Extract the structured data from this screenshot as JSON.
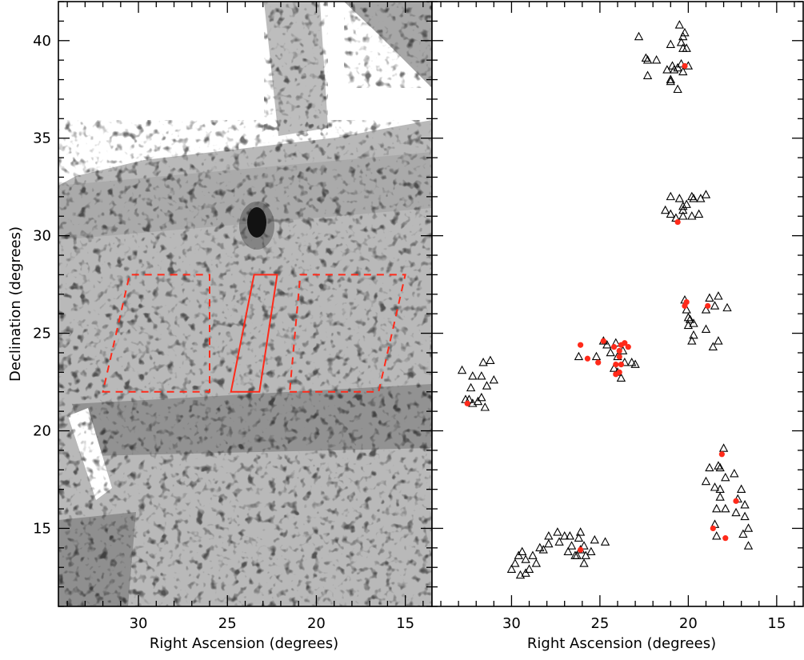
{
  "chart_data": [
    {
      "type": "scatter",
      "panel": "left-density-map",
      "xlabel": "Right Ascension (degrees)",
      "ylabel": "Declination (degrees)",
      "xlim": [
        34.5,
        13.5
      ],
      "ylim": [
        11,
        42
      ],
      "x_reversed": true,
      "x_ticks": [
        30,
        25,
        20,
        15
      ],
      "y_ticks": [
        15,
        20,
        25,
        30,
        35,
        40
      ],
      "background": "greyscale density map",
      "series": [
        {
          "style": "solid",
          "color": "#ff2a1a",
          "polygon": [
            [
              24.8,
              22.0
            ],
            [
              23.2,
              22.0
            ],
            [
              22.2,
              28.0
            ],
            [
              23.5,
              28.0
            ]
          ]
        },
        {
          "style": "dashed",
          "color": "#ff2a1a",
          "polygon": [
            [
              32.0,
              22.0
            ],
            [
              26.0,
              22.0
            ],
            [
              26.0,
              28.0
            ],
            [
              30.5,
              28.0
            ]
          ]
        },
        {
          "style": "dashed",
          "color": "#ff2a1a",
          "polygon": [
            [
              21.5,
              22.0
            ],
            [
              16.5,
              22.0
            ],
            [
              15.0,
              28.0
            ],
            [
              20.9,
              28.0
            ]
          ]
        }
      ]
    },
    {
      "type": "scatter",
      "panel": "right-positions",
      "xlabel": "Right Ascension (degrees)",
      "xlim": [
        34.5,
        13.5
      ],
      "ylim": [
        11,
        42
      ],
      "x_reversed": true,
      "x_ticks": [
        30,
        25,
        20,
        15
      ],
      "y_ticks": [
        15,
        20,
        25,
        30,
        35,
        40
      ],
      "series": [
        {
          "marker": "triangle-open",
          "color": "#000000",
          "x": [
            22.8,
            22.4,
            22.3,
            21.8,
            22.3,
            20.5,
            21.0,
            21.2,
            20.8,
            21.0,
            21.0,
            20.6,
            20.9,
            20.6,
            20.4,
            20.3,
            20.4,
            20.2,
            20.3,
            20.1,
            20.0,
            20.3,
            21.0,
            20.5,
            20.3,
            21.3,
            21.0,
            20.7,
            20.3,
            19.8,
            19.4,
            19.3,
            19.0,
            19.7,
            20.1,
            19.8,
            20.3,
            20.2,
            20.1,
            19.9,
            20.0,
            20.0,
            19.7,
            19.0,
            18.5,
            18.8,
            18.3,
            17.8,
            19.0,
            19.7,
            19.8,
            18.6,
            18.3,
            26.2,
            25.2,
            24.8,
            24.6,
            24.4,
            24.1,
            23.6,
            23.2,
            23.0,
            24.0,
            23.8,
            24.2,
            24.0,
            23.7,
            32.8,
            32.2,
            31.6,
            31.2,
            31.7,
            32.3,
            31.4,
            32.6,
            31.0,
            32.4,
            31.9,
            32.2,
            31.7,
            31.5,
            18.8,
            18.3,
            18.2,
            18.0,
            19.0,
            18.5,
            18.2,
            17.2,
            17.4,
            17.9,
            18.2,
            17.0,
            16.8,
            17.3,
            16.8,
            18.4,
            17.9,
            18.5,
            16.6,
            16.9,
            16.6,
            18.4,
            26.3,
            25.9,
            25.5,
            25.8,
            26.1,
            26.6,
            26.2,
            25.3,
            26.7,
            26.1,
            27.0,
            27.4,
            27.3,
            27.9,
            27.9,
            26.8,
            26.4,
            25.9,
            24.7,
            28.2,
            28.4,
            28.8,
            29.4,
            29.6,
            29.8,
            29.2,
            30.0,
            29.2,
            29.5,
            29.0,
            28.6
          ],
          "y": [
            40.2,
            39.1,
            39.0,
            39.0,
            38.2,
            40.8,
            39.8,
            38.5,
            38.5,
            38.0,
            37.9,
            37.5,
            38.7,
            38.6,
            38.8,
            39.6,
            39.9,
            40.4,
            40.2,
            39.6,
            38.7,
            38.4,
            32.0,
            31.9,
            31.3,
            31.3,
            31.1,
            30.9,
            31.0,
            31.0,
            31.1,
            31.9,
            32.1,
            31.9,
            31.6,
            32.0,
            31.5,
            26.7,
            26.2,
            25.7,
            25.4,
            25.8,
            25.5,
            26.2,
            26.4,
            26.8,
            26.9,
            26.3,
            25.2,
            24.9,
            24.6,
            24.3,
            24.6,
            23.8,
            23.8,
            24.6,
            24.4,
            24.0,
            24.5,
            23.5,
            23.5,
            23.4,
            23.0,
            22.7,
            23.2,
            23.8,
            24.1,
            23.1,
            22.8,
            23.5,
            23.6,
            22.8,
            22.2,
            22.3,
            21.6,
            22.6,
            21.6,
            21.5,
            21.4,
            21.7,
            21.2,
            18.1,
            18.2,
            18.1,
            19.1,
            17.4,
            17.1,
            16.6,
            16.5,
            17.8,
            17.6,
            17.0,
            17.0,
            16.2,
            15.8,
            15.6,
            16.0,
            16.0,
            15.2,
            15.0,
            14.7,
            14.1,
            14.6,
            13.6,
            14.1,
            13.8,
            13.6,
            13.9,
            14.1,
            14.5,
            14.4,
            14.6,
            14.8,
            14.6,
            14.8,
            14.3,
            14.2,
            14.6,
            13.8,
            13.6,
            13.2,
            14.3,
            13.9,
            14.0,
            13.6,
            13.8,
            13.6,
            13.2,
            13.4,
            12.9,
            12.7,
            12.6,
            12.9,
            13.2
          ]
        },
        {
          "marker": "circle-filled",
          "color": "#ff2a1a",
          "x": [
            20.2,
            20.6,
            20.1,
            20.2,
            18.9,
            26.1,
            25.7,
            25.1,
            24.8,
            24.2,
            23.9,
            23.8,
            23.6,
            23.4,
            23.9,
            24.1,
            23.8,
            23.9,
            24.1,
            32.5,
            17.3,
            18.1,
            17.9,
            18.6,
            26.1
          ],
          "y": [
            38.7,
            30.7,
            26.6,
            26.4,
            26.4,
            24.4,
            23.7,
            23.5,
            24.6,
            24.3,
            24.1,
            24.4,
            24.5,
            24.3,
            23.8,
            23.4,
            23.4,
            23.0,
            22.9,
            21.4,
            16.4,
            18.8,
            14.5,
            15.0,
            13.9
          ]
        }
      ]
    }
  ]
}
